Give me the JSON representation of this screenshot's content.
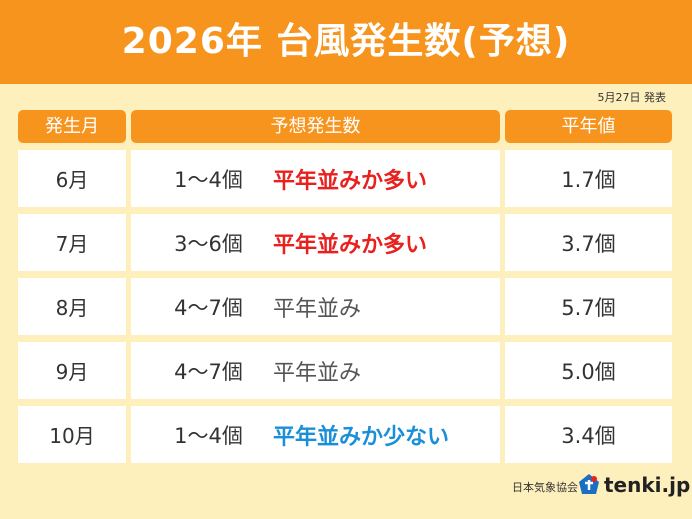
{
  "header": {
    "title": "2026年 台風発生数(予想)",
    "date": "5月27日 発表"
  },
  "table": {
    "columns": [
      "発生月",
      "予想発生数",
      "平年値"
    ],
    "rows": [
      {
        "month": "6月",
        "range": "1～4個",
        "note": "平年並みか多い",
        "note_color": "#e8201e",
        "normal": "1.7個"
      },
      {
        "month": "7月",
        "range": "3～6個",
        "note": "平年並みか多い",
        "note_color": "#e8201e",
        "normal": "3.7個"
      },
      {
        "month": "8月",
        "range": "4～7個",
        "note": "平年並み",
        "note_color": "#555555",
        "normal": "5.7個"
      },
      {
        "month": "9月",
        "range": "4～7個",
        "note": "平年並み",
        "note_color": "#555555",
        "normal": "5.0個"
      },
      {
        "month": "10月",
        "range": "1～4個",
        "note": "平年並みか少ない",
        "note_color": "#1a8fd8",
        "normal": "3.4個"
      }
    ]
  },
  "footer": {
    "source": "日本気象協会",
    "brand": "tenki.jp"
  }
}
